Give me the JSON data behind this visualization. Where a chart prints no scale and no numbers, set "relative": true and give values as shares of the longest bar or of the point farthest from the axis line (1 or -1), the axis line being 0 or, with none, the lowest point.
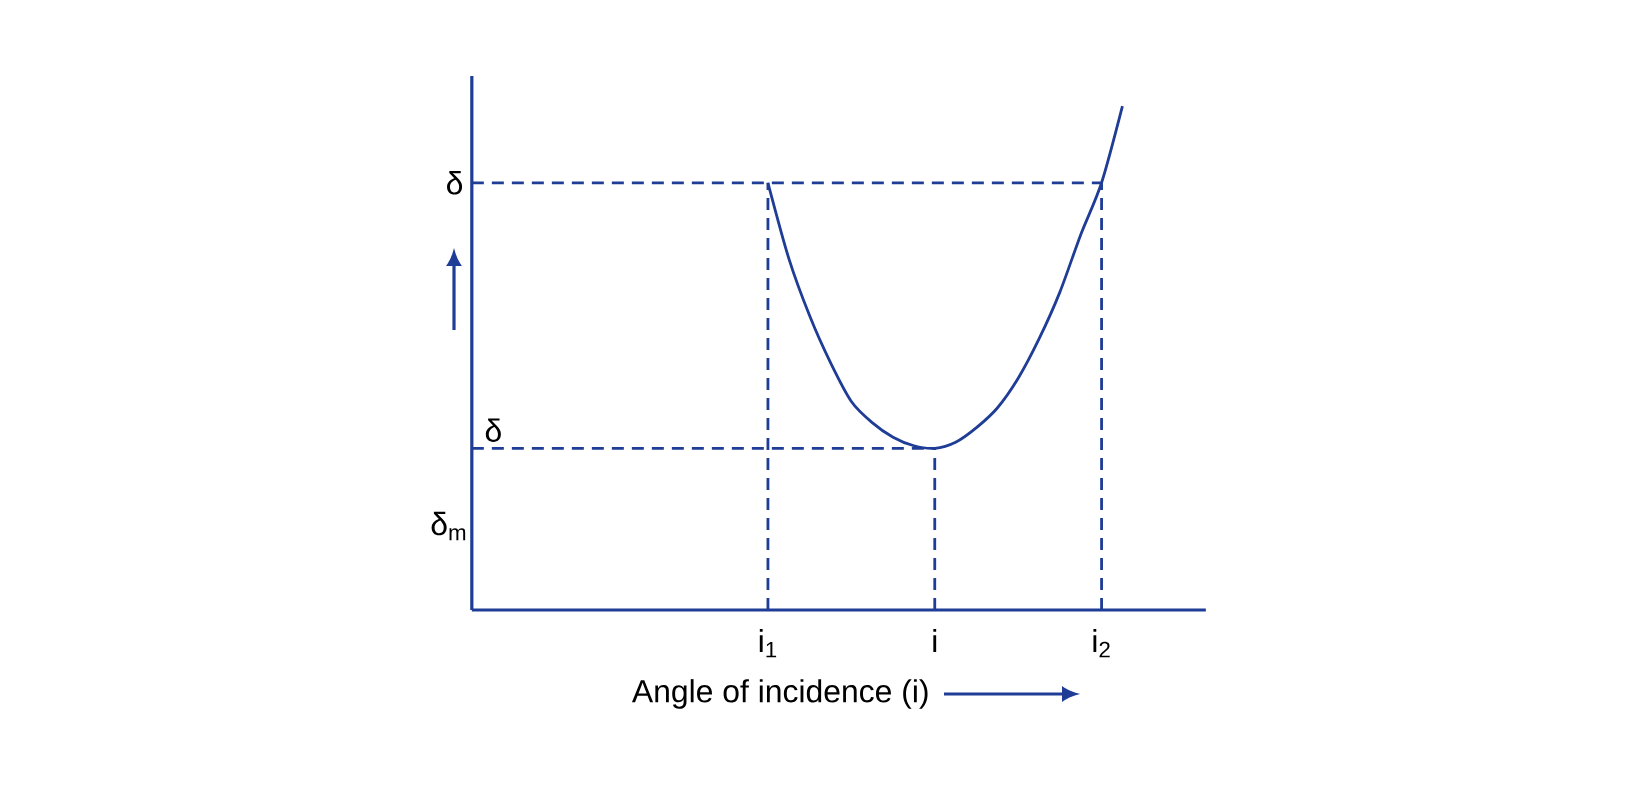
{
  "chart_data": {
    "type": "line",
    "relative": true,
    "xlabel": "Angle of incidence (i)",
    "categories": [
      null,
      null,
      null,
      null,
      null,
      null,
      null,
      null,
      null,
      null,
      null,
      null,
      null,
      null,
      "i$_{1}$",
      null,
      null,
      null,
      null,
      null,
      null,
      null,
      "i",
      null,
      null,
      null,
      null,
      null,
      null,
      null,
      "i$_{2}$",
      null,
      null,
      null,
      null
    ],
    "annotations": [
      "δ$_{m}$"
    ],
    "ref_lines": [
      {
        "axis": "y",
        "value": 0.848,
        "label": "δ",
        "line_style": "dashed"
      },
      {
        "axis": "y",
        "value": 0.321,
        "label": "δ",
        "line_style": "dashed"
      },
      {
        "axis": "x",
        "value": "i$_{1}$",
        "line_style": "dashed"
      },
      {
        "axis": "x",
        "value": "i",
        "line_style": "dashed"
      },
      {
        "axis": "x",
        "value": "i$_{2}$",
        "line_style": "dashed"
      }
    ],
    "series": [
      {
        "color": "#1f3c96",
        "line_style": "solid",
        "values": [
          null,
          null,
          null,
          null,
          null,
          null,
          null,
          null,
          null,
          null,
          null,
          null,
          null,
          null,
          0.848,
          0.698,
          0.584,
          0.491,
          0.414,
          0.372,
          0.343,
          0.326,
          0.321,
          0.333,
          0.362,
          0.401,
          0.46,
          0.538,
          0.631,
          0.745,
          0.848,
          1.0,
          null,
          null,
          null
        ]
      }
    ]
  }
}
